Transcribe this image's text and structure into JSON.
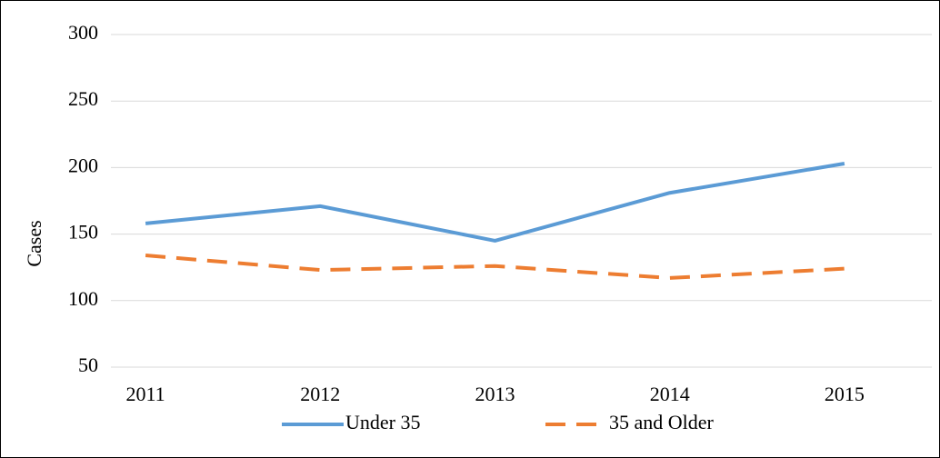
{
  "chart_data": {
    "type": "line",
    "y_label": "Cases",
    "categories": [
      "2011",
      "2012",
      "2013",
      "2014",
      "2015"
    ],
    "series": [
      {
        "name": "Under 35",
        "color": "#5b9bd5",
        "dash": false,
        "values": [
          158,
          171,
          145,
          181,
          203
        ]
      },
      {
        "name": "35 and Older",
        "color": "#ed7d31",
        "dash": true,
        "values": [
          134,
          123,
          126,
          117,
          124
        ]
      }
    ],
    "ylim": [
      50,
      300
    ],
    "yticks": [
      50,
      100,
      150,
      200,
      250,
      300
    ],
    "grid": true,
    "legend": "bottom"
  }
}
